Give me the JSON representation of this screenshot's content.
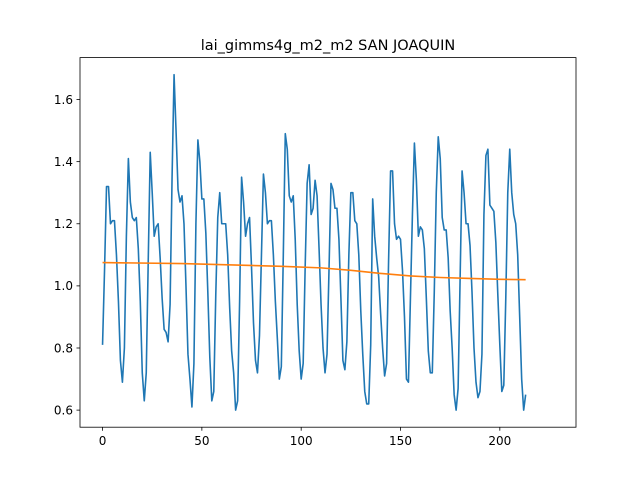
{
  "chart_data": {
    "type": "line",
    "title": "lai_gimms4g_m2_m2 SAN JOAQUIN",
    "xlabel": "",
    "ylabel": "",
    "xlim": [
      -11.35,
      238.35
    ],
    "ylim": [
      0.545,
      1.735
    ],
    "grid": false,
    "x_ticks": [
      0,
      50,
      100,
      150,
      200
    ],
    "y_ticks": [
      0.6,
      0.8,
      1.0,
      1.2,
      1.4,
      1.6
    ],
    "x_tick_labels": [
      "0",
      "50",
      "100",
      "150",
      "200"
    ],
    "y_tick_labels": [
      "0.6",
      "0.8",
      "1.0",
      "1.2",
      "1.4",
      "1.6"
    ],
    "series": [
      {
        "color": "#1f77b4",
        "points": [
          [
            0,
            0.81
          ],
          [
            1,
            1.05
          ],
          [
            2,
            1.32
          ],
          [
            3,
            1.32
          ],
          [
            4,
            1.2
          ],
          [
            5,
            1.21
          ],
          [
            6,
            1.21
          ],
          [
            7,
            1.1
          ],
          [
            8,
            0.95
          ],
          [
            9,
            0.76
          ],
          [
            10,
            0.69
          ],
          [
            11,
            0.8
          ],
          [
            12,
            1.16
          ],
          [
            13,
            1.41
          ],
          [
            14,
            1.27
          ],
          [
            15,
            1.22
          ],
          [
            16,
            1.21
          ],
          [
            17,
            1.22
          ],
          [
            18,
            1.12
          ],
          [
            19,
            0.95
          ],
          [
            20,
            0.72
          ],
          [
            21,
            0.63
          ],
          [
            22,
            0.72
          ],
          [
            23,
            1.08
          ],
          [
            24,
            1.43
          ],
          [
            25,
            1.3
          ],
          [
            26,
            1.16
          ],
          [
            27,
            1.19
          ],
          [
            28,
            1.2
          ],
          [
            29,
            1.09
          ],
          [
            30,
            0.96
          ],
          [
            31,
            0.86
          ],
          [
            32,
            0.85
          ],
          [
            33,
            0.82
          ],
          [
            34,
            0.94
          ],
          [
            35,
            1.35
          ],
          [
            36,
            1.68
          ],
          [
            37,
            1.5
          ],
          [
            38,
            1.31
          ],
          [
            39,
            1.27
          ],
          [
            40,
            1.29
          ],
          [
            41,
            1.2
          ],
          [
            42,
            1.0
          ],
          [
            43,
            0.78
          ],
          [
            44,
            0.7
          ],
          [
            45,
            0.61
          ],
          [
            46,
            0.75
          ],
          [
            47,
            1.2
          ],
          [
            48,
            1.47
          ],
          [
            49,
            1.4
          ],
          [
            50,
            1.28
          ],
          [
            51,
            1.28
          ],
          [
            52,
            1.17
          ],
          [
            53,
            0.98
          ],
          [
            54,
            0.77
          ],
          [
            55,
            0.63
          ],
          [
            56,
            0.66
          ],
          [
            57,
            0.97
          ],
          [
            58,
            1.22
          ],
          [
            59,
            1.3
          ],
          [
            60,
            1.2
          ],
          [
            61,
            1.2
          ],
          [
            62,
            1.2
          ],
          [
            63,
            1.1
          ],
          [
            64,
            0.93
          ],
          [
            65,
            0.79
          ],
          [
            66,
            0.72
          ],
          [
            67,
            0.6
          ],
          [
            68,
            0.63
          ],
          [
            69,
            0.95
          ],
          [
            70,
            1.35
          ],
          [
            71,
            1.27
          ],
          [
            72,
            1.16
          ],
          [
            73,
            1.2
          ],
          [
            74,
            1.22
          ],
          [
            75,
            1.06
          ],
          [
            76,
            0.88
          ],
          [
            77,
            0.76
          ],
          [
            78,
            0.72
          ],
          [
            79,
            0.84
          ],
          [
            80,
            1.1
          ],
          [
            81,
            1.36
          ],
          [
            82,
            1.3
          ],
          [
            83,
            1.2
          ],
          [
            84,
            1.21
          ],
          [
            85,
            1.21
          ],
          [
            86,
            1.1
          ],
          [
            87,
            0.95
          ],
          [
            88,
            0.83
          ],
          [
            89,
            0.7
          ],
          [
            90,
            0.74
          ],
          [
            91,
            1.1
          ],
          [
            92,
            1.49
          ],
          [
            93,
            1.44
          ],
          [
            94,
            1.29
          ],
          [
            95,
            1.27
          ],
          [
            96,
            1.29
          ],
          [
            97,
            1.15
          ],
          [
            98,
            0.94
          ],
          [
            99,
            0.79
          ],
          [
            100,
            0.7
          ],
          [
            101,
            0.75
          ],
          [
            102,
            1.06
          ],
          [
            103,
            1.33
          ],
          [
            104,
            1.39
          ],
          [
            105,
            1.23
          ],
          [
            106,
            1.25
          ],
          [
            107,
            1.34
          ],
          [
            108,
            1.29
          ],
          [
            109,
            1.12
          ],
          [
            110,
            0.94
          ],
          [
            111,
            0.8
          ],
          [
            112,
            0.72
          ],
          [
            113,
            0.78
          ],
          [
            114,
            1.05
          ],
          [
            115,
            1.33
          ],
          [
            116,
            1.31
          ],
          [
            117,
            1.25
          ],
          [
            118,
            1.25
          ],
          [
            119,
            1.15
          ],
          [
            120,
            0.96
          ],
          [
            121,
            0.76
          ],
          [
            122,
            0.73
          ],
          [
            123,
            0.82
          ],
          [
            124,
            1.1
          ],
          [
            125,
            1.3
          ],
          [
            126,
            1.3
          ],
          [
            127,
            1.21
          ],
          [
            128,
            1.2
          ],
          [
            129,
            1.1
          ],
          [
            130,
            0.92
          ],
          [
            131,
            0.78
          ],
          [
            132,
            0.66
          ],
          [
            133,
            0.62
          ],
          [
            134,
            0.62
          ],
          [
            135,
            0.81
          ],
          [
            136,
            1.28
          ],
          [
            137,
            1.16
          ],
          [
            138,
            1.09
          ],
          [
            139,
            1.03
          ],
          [
            140,
            0.91
          ],
          [
            141,
            0.8
          ],
          [
            142,
            0.71
          ],
          [
            143,
            0.75
          ],
          [
            144,
            1.08
          ],
          [
            145,
            1.37
          ],
          [
            146,
            1.37
          ],
          [
            147,
            1.2
          ],
          [
            148,
            1.15
          ],
          [
            149,
            1.16
          ],
          [
            150,
            1.15
          ],
          [
            151,
            1.05
          ],
          [
            152,
            0.9
          ],
          [
            153,
            0.7
          ],
          [
            154,
            0.69
          ],
          [
            155,
            0.96
          ],
          [
            156,
            1.23
          ],
          [
            157,
            1.46
          ],
          [
            158,
            1.34
          ],
          [
            159,
            1.16
          ],
          [
            160,
            1.19
          ],
          [
            161,
            1.18
          ],
          [
            162,
            1.12
          ],
          [
            163,
            0.96
          ],
          [
            164,
            0.79
          ],
          [
            165,
            0.72
          ],
          [
            166,
            0.72
          ],
          [
            167,
            0.98
          ],
          [
            168,
            1.3
          ],
          [
            169,
            1.48
          ],
          [
            170,
            1.41
          ],
          [
            171,
            1.22
          ],
          [
            172,
            1.18
          ],
          [
            173,
            1.18
          ],
          [
            174,
            1.09
          ],
          [
            175,
            0.92
          ],
          [
            176,
            0.8
          ],
          [
            177,
            0.65
          ],
          [
            178,
            0.6
          ],
          [
            179,
            0.67
          ],
          [
            180,
            1.02
          ],
          [
            181,
            1.37
          ],
          [
            182,
            1.3
          ],
          [
            183,
            1.2
          ],
          [
            184,
            1.2
          ],
          [
            185,
            1.13
          ],
          [
            186,
            0.98
          ],
          [
            187,
            0.8
          ],
          [
            188,
            0.69
          ],
          [
            189,
            0.64
          ],
          [
            190,
            0.66
          ],
          [
            191,
            0.78
          ],
          [
            192,
            1.23
          ],
          [
            193,
            1.42
          ],
          [
            194,
            1.44
          ],
          [
            195,
            1.26
          ],
          [
            196,
            1.25
          ],
          [
            197,
            1.24
          ],
          [
            198,
            1.14
          ],
          [
            199,
            0.97
          ],
          [
            200,
            0.81
          ],
          [
            201,
            0.66
          ],
          [
            202,
            0.68
          ],
          [
            203,
            0.96
          ],
          [
            204,
            1.3
          ],
          [
            205,
            1.44
          ],
          [
            206,
            1.3
          ],
          [
            207,
            1.23
          ],
          [
            208,
            1.2
          ],
          [
            209,
            1.1
          ],
          [
            210,
            0.9
          ],
          [
            211,
            0.7
          ],
          [
            212,
            0.6
          ],
          [
            213,
            0.65
          ]
        ]
      },
      {
        "color": "#ff7f0e",
        "points": [
          [
            0,
            1.075
          ],
          [
            40,
            1.072
          ],
          [
            90,
            1.063
          ],
          [
            110,
            1.058
          ],
          [
            125,
            1.05
          ],
          [
            140,
            1.04
          ],
          [
            155,
            1.032
          ],
          [
            170,
            1.027
          ],
          [
            185,
            1.024
          ],
          [
            200,
            1.021
          ],
          [
            213,
            1.02
          ]
        ]
      }
    ]
  }
}
